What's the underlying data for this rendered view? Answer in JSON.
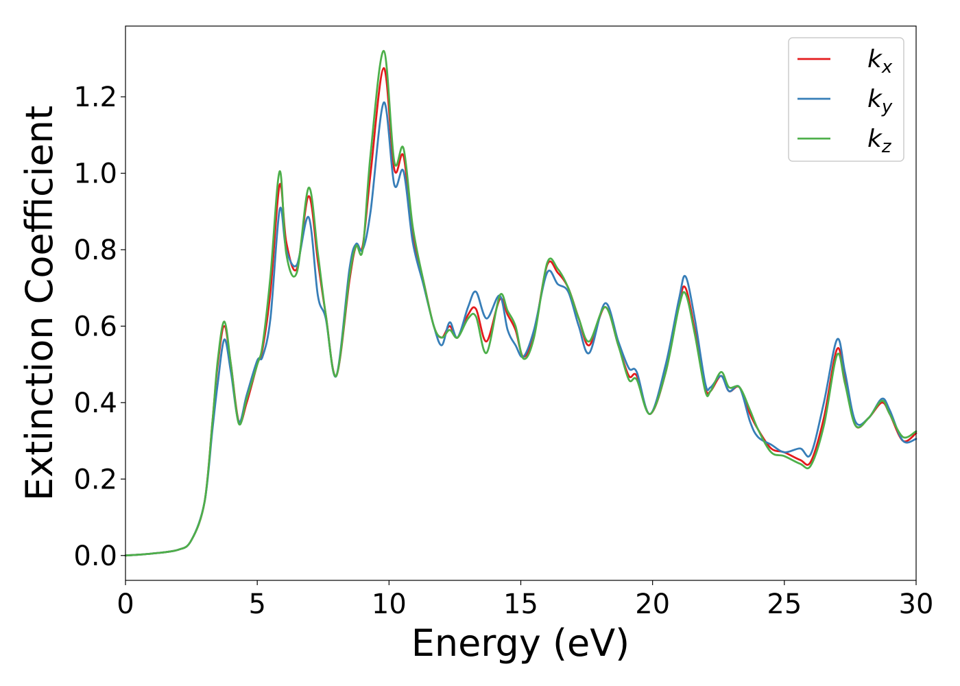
{
  "chart_data": {
    "type": "line",
    "xlabel": "Energy (eV)",
    "ylabel": "Extinction Coefficient",
    "xlim": [
      0,
      30
    ],
    "ylim": [
      -0.065,
      1.385
    ],
    "xticks": [
      "0",
      "5",
      "10",
      "15",
      "20",
      "25",
      "30"
    ],
    "yticks": [
      "0.0",
      "0.2",
      "0.4",
      "0.6",
      "0.8",
      "1.0",
      "1.2"
    ],
    "grid": false,
    "legend": "top-right",
    "x": [
      0,
      1,
      2,
      2.5,
      3,
      3.3,
      3.5,
      3.75,
      4,
      4.3,
      4.6,
      5,
      5.2,
      5.5,
      5.85,
      6.1,
      6.5,
      6.95,
      7.3,
      7.6,
      8,
      8.5,
      8.75,
      9,
      9.3,
      9.8,
      10.2,
      10.55,
      10.9,
      11.3,
      11.7,
      12,
      12.3,
      12.6,
      13,
      13.3,
      13.7,
      14.2,
      14.5,
      14.8,
      15.1,
      15.5,
      16,
      16.4,
      16.8,
      17.2,
      17.6,
      18.2,
      18.7,
      19.1,
      19.4,
      19.9,
      20.5,
      21,
      21.25,
      21.6,
      22,
      22.2,
      22.6,
      22.9,
      23.3,
      23.7,
      24,
      24.5,
      25,
      25.6,
      26,
      26.5,
      27,
      27.3,
      27.7,
      28.2,
      28.7,
      29,
      29.5,
      30
    ],
    "series": [
      {
        "name": "k_x",
        "color": "#e41a1c",
        "values": [
          0.0,
          0.005,
          0.015,
          0.04,
          0.14,
          0.35,
          0.5,
          0.6,
          0.5,
          0.35,
          0.4,
          0.5,
          0.54,
          0.69,
          0.97,
          0.82,
          0.75,
          0.94,
          0.77,
          0.63,
          0.47,
          0.72,
          0.81,
          0.81,
          1.0,
          1.275,
          1.01,
          1.045,
          0.84,
          0.72,
          0.6,
          0.57,
          0.6,
          0.57,
          0.63,
          0.645,
          0.56,
          0.67,
          0.63,
          0.59,
          0.52,
          0.58,
          0.76,
          0.74,
          0.7,
          0.62,
          0.55,
          0.65,
          0.55,
          0.47,
          0.47,
          0.37,
          0.48,
          0.66,
          0.7,
          0.59,
          0.44,
          0.43,
          0.47,
          0.43,
          0.44,
          0.37,
          0.33,
          0.28,
          0.27,
          0.25,
          0.245,
          0.36,
          0.54,
          0.46,
          0.34,
          0.36,
          0.4,
          0.37,
          0.3,
          0.32
        ]
      },
      {
        "name": "k_y",
        "color": "#377eb8",
        "values": [
          0.0,
          0.005,
          0.015,
          0.04,
          0.14,
          0.33,
          0.45,
          0.565,
          0.48,
          0.35,
          0.42,
          0.51,
          0.52,
          0.62,
          0.905,
          0.8,
          0.76,
          0.885,
          0.68,
          0.62,
          0.47,
          0.75,
          0.815,
          0.8,
          0.9,
          1.185,
          0.97,
          1.005,
          0.82,
          0.71,
          0.6,
          0.55,
          0.61,
          0.57,
          0.65,
          0.69,
          0.62,
          0.68,
          0.59,
          0.55,
          0.52,
          0.59,
          0.74,
          0.71,
          0.69,
          0.6,
          0.53,
          0.66,
          0.56,
          0.49,
          0.48,
          0.37,
          0.5,
          0.67,
          0.73,
          0.62,
          0.45,
          0.44,
          0.47,
          0.43,
          0.44,
          0.35,
          0.31,
          0.29,
          0.27,
          0.28,
          0.265,
          0.4,
          0.565,
          0.48,
          0.35,
          0.36,
          0.41,
          0.38,
          0.3,
          0.305
        ]
      },
      {
        "name": "k_z",
        "color": "#4daf4a",
        "values": [
          0.0,
          0.005,
          0.015,
          0.04,
          0.14,
          0.35,
          0.51,
          0.612,
          0.5,
          0.345,
          0.41,
          0.5,
          0.55,
          0.73,
          1.005,
          0.79,
          0.74,
          0.962,
          0.79,
          0.63,
          0.47,
          0.73,
          0.81,
          0.8,
          1.05,
          1.32,
          1.03,
          1.065,
          0.86,
          0.72,
          0.6,
          0.57,
          0.59,
          0.57,
          0.62,
          0.625,
          0.53,
          0.68,
          0.64,
          0.6,
          0.515,
          0.57,
          0.765,
          0.75,
          0.7,
          0.62,
          0.56,
          0.65,
          0.55,
          0.46,
          0.46,
          0.37,
          0.48,
          0.65,
          0.685,
          0.58,
          0.43,
          0.43,
          0.48,
          0.44,
          0.44,
          0.38,
          0.33,
          0.27,
          0.26,
          0.24,
          0.235,
          0.34,
          0.525,
          0.45,
          0.34,
          0.36,
          0.405,
          0.37,
          0.31,
          0.325
        ]
      }
    ]
  }
}
